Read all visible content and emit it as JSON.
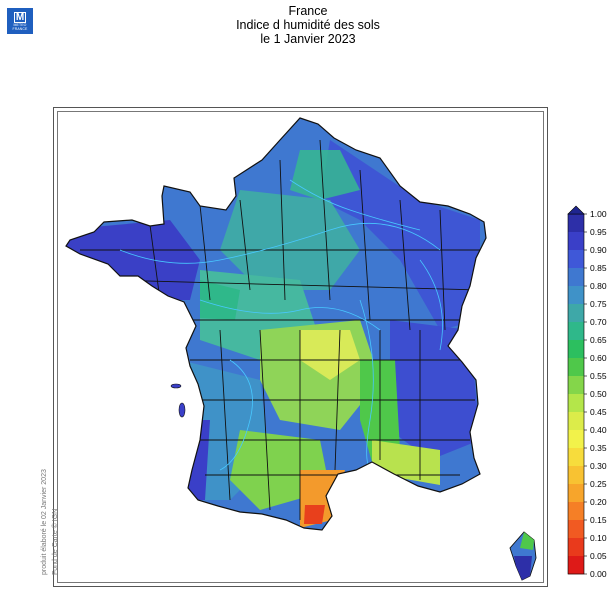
{
  "header": {
    "logo_line1": "METEO",
    "logo_line2": "FRANCE",
    "title_line1": "France",
    "title_line2": "Indice d humidité des sols",
    "title_line3": "le 1 Janvier 2023"
  },
  "credits": {
    "produced": "produit élaboré le 02 Janvier 2023",
    "basemap": "Fond de Carte © IGN"
  },
  "legend": {
    "ticks": [
      "1.00",
      "0.95",
      "0.90",
      "0.85",
      "0.80",
      "0.75",
      "0.70",
      "0.65",
      "0.60",
      "0.55",
      "0.50",
      "0.45",
      "0.40",
      "0.35",
      "0.30",
      "0.25",
      "0.20",
      "0.15",
      "0.10",
      "0.05",
      "0.00"
    ],
    "colors": [
      "#2d2fa8",
      "#3a3fc8",
      "#3f58d8",
      "#3f78d0",
      "#3f92c8",
      "#3ea8a8",
      "#2fb88a",
      "#2cbf5f",
      "#4fc84a",
      "#84d64a",
      "#b4e64a",
      "#dcec4a",
      "#f2f24a",
      "#f7dc3c",
      "#f8c232",
      "#f7a52b",
      "#f57f26",
      "#f15a22",
      "#e93a1c",
      "#de1a18"
    ],
    "top_marker_color": "#1f2590"
  },
  "map": {
    "outline_color": "#111111",
    "river_color": "#48c8ff",
    "regions": [
      {
        "name": "nord-est",
        "color": "#3e56d4"
      },
      {
        "name": "bretagne",
        "color": "#3a40c6"
      },
      {
        "name": "centre",
        "color": "#46b8a0"
      },
      {
        "name": "massif-central",
        "color": "#8fd458"
      },
      {
        "name": "sud-ouest",
        "color": "#3f92c8"
      },
      {
        "name": "alpes",
        "color": "#3d4ed0"
      },
      {
        "name": "languedoc",
        "color": "#f39a2c"
      },
      {
        "name": "corse",
        "color": "#3f78d0"
      }
    ]
  }
}
